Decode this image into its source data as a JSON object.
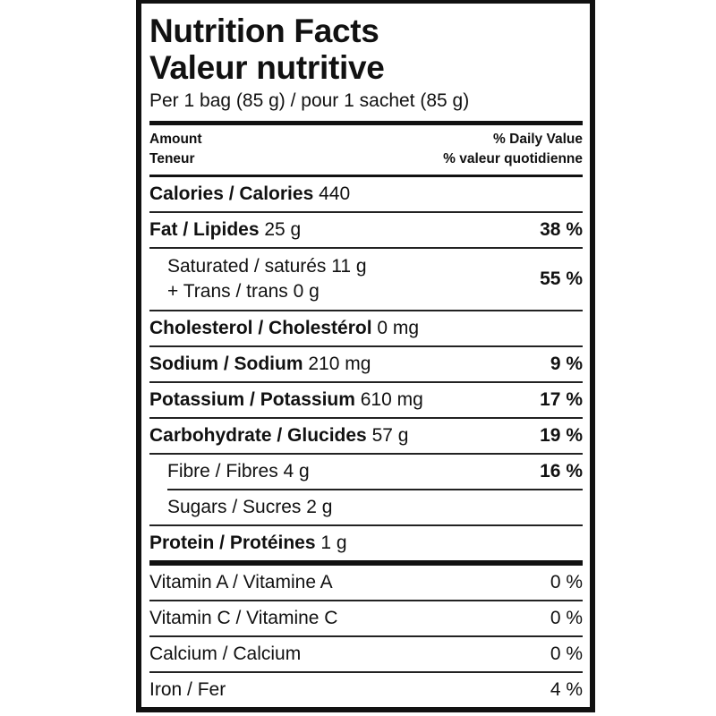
{
  "title_en": "Nutrition Facts",
  "title_fr": "Valeur nutritive",
  "serving": "Per 1 bag (85 g) / pour 1 sachet (85 g)",
  "header": {
    "amount": "Amount",
    "teneur": "Teneur",
    "dv": "% Daily Value",
    "dv_fr": "% valeur quotidienne"
  },
  "rows": {
    "calories": {
      "label": "Calories / Calories",
      "amount": "440"
    },
    "fat": {
      "label": "Fat / Lipides",
      "amount": "25 g",
      "dv": "38 %"
    },
    "saturated": {
      "label": "Saturated / saturés 11 g",
      "label2": "+ Trans / trans 0 g",
      "dv": "55 %"
    },
    "cholesterol": {
      "label": "Cholesterol / Cholestérol",
      "amount": "0 mg"
    },
    "sodium": {
      "label": "Sodium / Sodium",
      "amount": "210 mg",
      "dv": "9 %"
    },
    "potassium": {
      "label": "Potassium / Potassium",
      "amount": "610 mg",
      "dv": "17 %"
    },
    "carbohydrate": {
      "label": "Carbohydrate / Glucides",
      "amount": "57 g",
      "dv": "19 %"
    },
    "fibre": {
      "label": "Fibre / Fibres 4 g",
      "dv": "16 %"
    },
    "sugars": {
      "label": "Sugars / Sucres 2 g"
    },
    "protein": {
      "label": "Protein / Protéines",
      "amount": "1 g"
    },
    "vitamin_a": {
      "label": "Vitamin A / Vitamine A",
      "dv": "0 %"
    },
    "vitamin_c": {
      "label": "Vitamin C / Vitamine C",
      "dv": "0 %"
    },
    "calcium": {
      "label": "Calcium / Calcium",
      "dv": "0 %"
    },
    "iron": {
      "label": "Iron / Fer",
      "dv": "4 %"
    }
  }
}
